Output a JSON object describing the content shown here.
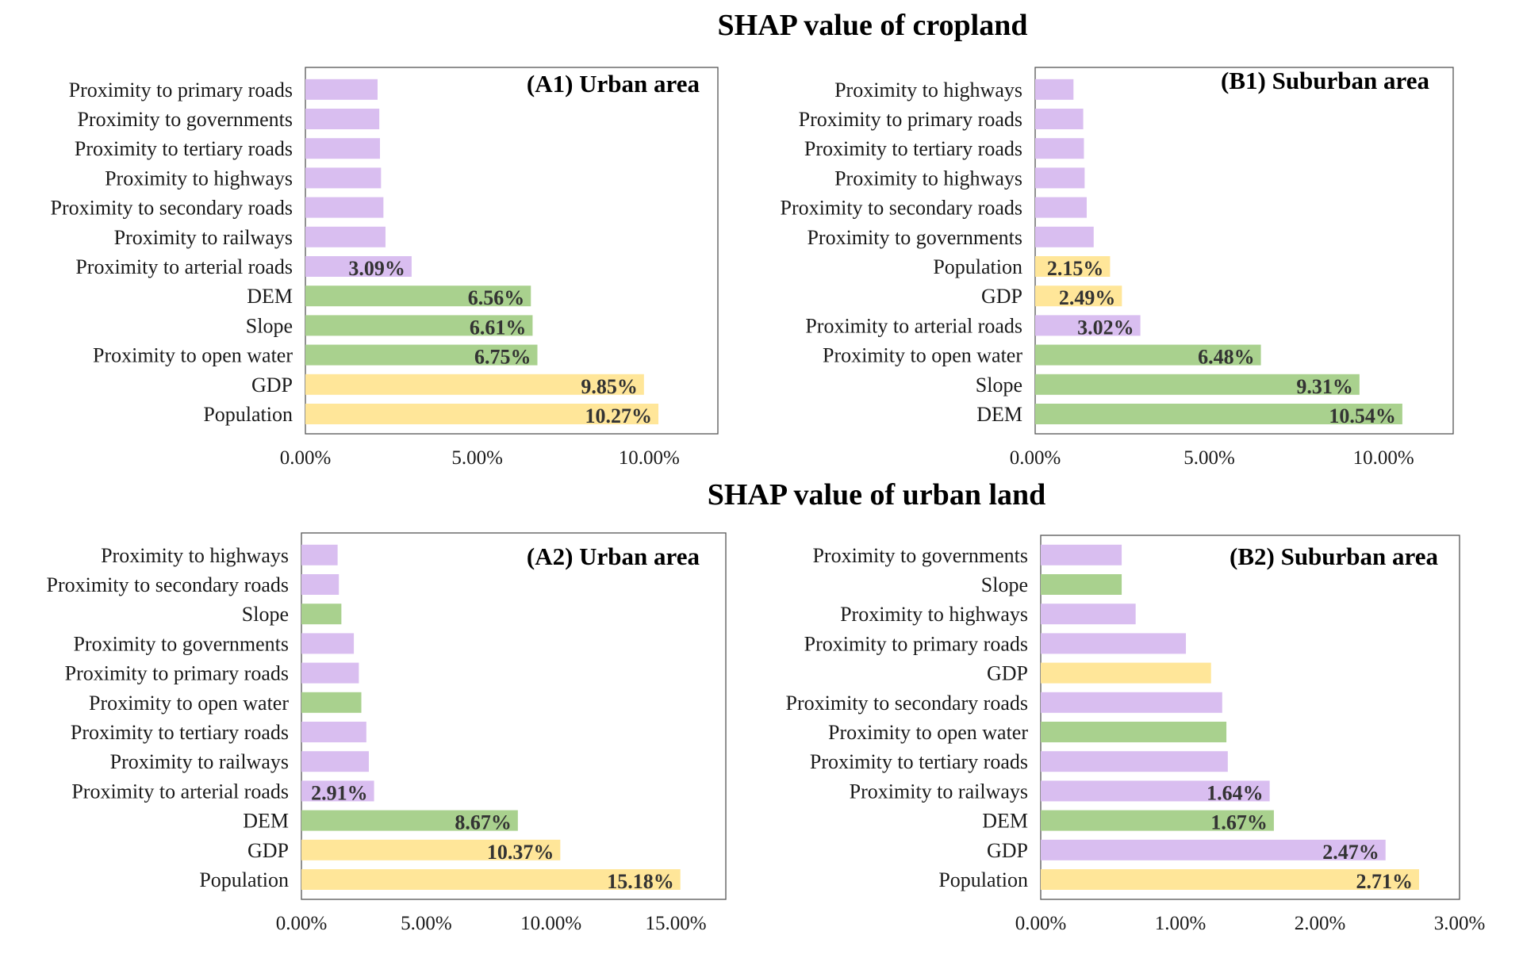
{
  "section_titles": {
    "cropland": "SHAP value of cropland",
    "urban": "SHAP value of urban land"
  },
  "colors": {
    "road": "#D9BEF0",
    "natural": "#A9D18E",
    "socioeconomic": "#FFE699"
  },
  "chart_data": [
    {
      "type": "bar",
      "orientation": "horizontal",
      "title": "(A1) Urban area",
      "categories": [
        "Proximity to primary roads",
        "Proximity to governments",
        "Proximity to tertiary roads",
        "Proximity to highways",
        "Proximity to secondary roads",
        "Proximity to railways",
        "Proximity to arterial roads",
        "DEM",
        "Slope",
        "Proximity to open water",
        "GDP",
        "Population"
      ],
      "values": [
        2.1,
        2.15,
        2.17,
        2.2,
        2.27,
        2.33,
        3.09,
        6.56,
        6.61,
        6.75,
        9.85,
        10.27
      ],
      "data_labels": [
        "",
        "",
        "",
        "",
        "",
        "",
        "3.09%",
        "6.56%",
        "6.61%",
        "6.75%",
        "9.85%",
        "10.27%"
      ],
      "color_groups": [
        "road",
        "road",
        "road",
        "road",
        "road",
        "road",
        "road",
        "natural",
        "natural",
        "natural",
        "socioeconomic",
        "socioeconomic"
      ],
      "xlim": [
        0,
        12
      ],
      "xticks": [
        0,
        5,
        10
      ],
      "xtick_labels": [
        "0.00%",
        "5.00%",
        "10.00%"
      ]
    },
    {
      "type": "bar",
      "orientation": "horizontal",
      "title": "(B1) Suburban area",
      "categories": [
        "Proximity to highways",
        "Proximity to primary roads",
        "Proximity to tertiary roads",
        "Proximity to highways",
        "Proximity to secondary roads",
        "Proximity to governments",
        "Population",
        "GDP",
        "Proximity to arterial roads",
        "Proximity to open water",
        "Slope",
        "DEM"
      ],
      "values": [
        1.1,
        1.38,
        1.4,
        1.42,
        1.48,
        1.68,
        2.15,
        2.49,
        3.02,
        6.48,
        9.31,
        10.54
      ],
      "data_labels": [
        "",
        "",
        "",
        "",
        "",
        "",
        "2.15%",
        "2.49%",
        "3.02%",
        "6.48%",
        "9.31%",
        "10.54%"
      ],
      "color_groups": [
        "road",
        "road",
        "road",
        "road",
        "road",
        "road",
        "socioeconomic",
        "socioeconomic",
        "road",
        "natural",
        "natural",
        "natural"
      ],
      "xlim": [
        0,
        12
      ],
      "xticks": [
        0,
        5,
        10
      ],
      "xtick_labels": [
        "0.00%",
        "5.00%",
        "10.00%"
      ]
    },
    {
      "type": "bar",
      "orientation": "horizontal",
      "title": "(A2) Urban area",
      "categories": [
        "Proximity to highways",
        "Proximity to secondary roads",
        "Slope",
        "Proximity to governments",
        "Proximity to primary roads",
        "Proximity to open water",
        "Proximity to tertiary roads",
        "Proximity to railways",
        "Proximity to arterial roads",
        "DEM",
        "GDP",
        "Population"
      ],
      "values": [
        1.45,
        1.5,
        1.6,
        2.1,
        2.3,
        2.4,
        2.6,
        2.7,
        2.91,
        8.67,
        10.37,
        15.18
      ],
      "data_labels": [
        "",
        "",
        "",
        "",
        "",
        "",
        "",
        "",
        "2.91%",
        "8.67%",
        "10.37%",
        "15.18%"
      ],
      "color_groups": [
        "road",
        "road",
        "natural",
        "road",
        "road",
        "natural",
        "road",
        "road",
        "road",
        "natural",
        "socioeconomic",
        "socioeconomic"
      ],
      "xlim": [
        0,
        17
      ],
      "xticks": [
        0,
        5,
        10,
        15
      ],
      "xtick_labels": [
        "0.00%",
        "5.00%",
        "10.00%",
        "15.00%"
      ]
    },
    {
      "type": "bar",
      "orientation": "horizontal",
      "title": "(B2) Suburban area",
      "categories": [
        "Proximity to governments",
        "Slope",
        "Proximity to highways",
        "Proximity to primary roads",
        "GDP",
        "Proximity to secondary roads",
        "Proximity to open water",
        "Proximity to tertiary roads",
        "Proximity to railways",
        "DEM",
        "GDP",
        "Population"
      ],
      "values": [
        0.58,
        0.58,
        0.68,
        1.04,
        1.22,
        1.3,
        1.33,
        1.34,
        1.64,
        1.67,
        2.47,
        2.71
      ],
      "data_labels": [
        "",
        "",
        "",
        "",
        "",
        "",
        "",
        "",
        "1.64%",
        "1.67%",
        "2.47%",
        "2.71%"
      ],
      "color_groups": [
        "road",
        "natural",
        "road",
        "road",
        "socioeconomic",
        "road",
        "natural",
        "road",
        "road",
        "natural",
        "road",
        "socioeconomic"
      ],
      "xlim": [
        0,
        3
      ],
      "xticks": [
        0,
        1,
        2,
        3
      ],
      "xtick_labels": [
        "0.00%",
        "1.00%",
        "2.00%",
        "3.00%"
      ]
    }
  ]
}
